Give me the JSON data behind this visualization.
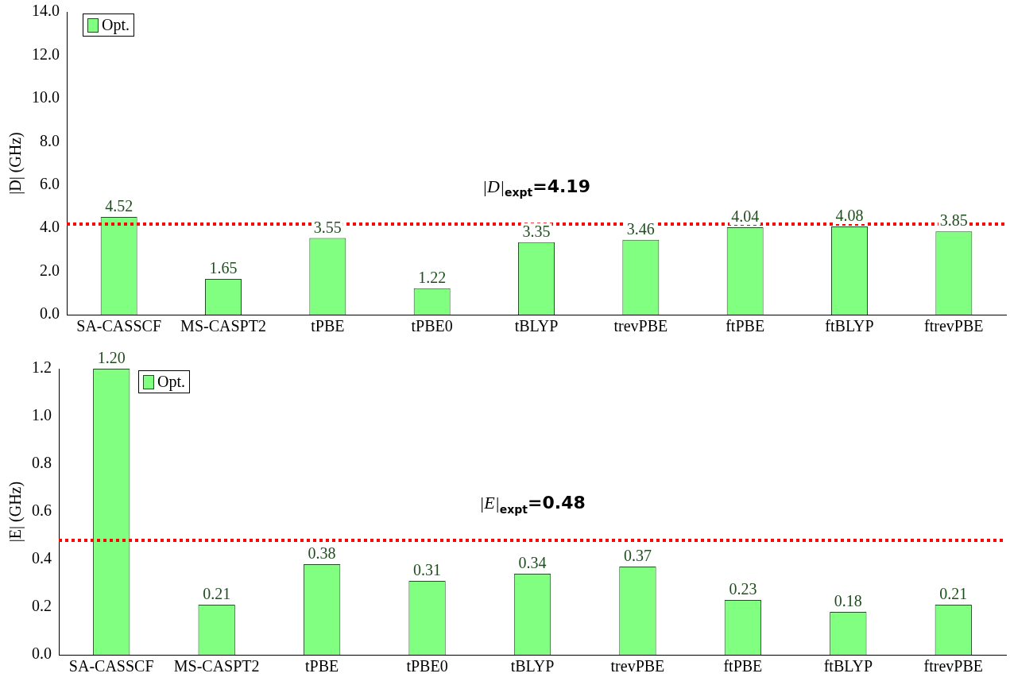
{
  "chart_data": [
    {
      "type": "bar",
      "ylabel": "|D| (GHz)",
      "categories": [
        "SA-CASSCF",
        "MS-CASPT2",
        "tPBE",
        "tPBE0",
        "tBLYP",
        "trevPBE",
        "ftPBE",
        "ftBLYP",
        "ftrevPBE"
      ],
      "series": [
        {
          "name": "Opt.",
          "color": "#80ff80",
          "values": [
            4.52,
            1.65,
            3.55,
            1.22,
            3.35,
            3.46,
            4.04,
            4.08,
            3.85
          ],
          "value_labels": [
            "4.52",
            "1.65",
            "3.55",
            "1.22",
            "3.35",
            "3.46",
            "4.04",
            "4.08",
            "3.85"
          ]
        }
      ],
      "ylim": [
        0,
        14
      ],
      "yticks": [
        {
          "value": 0,
          "label": "0.0"
        },
        {
          "value": 2,
          "label": "2.0"
        },
        {
          "value": 4,
          "label": "4.0"
        },
        {
          "value": 6,
          "label": "6.0"
        },
        {
          "value": 8,
          "label": "8.0"
        },
        {
          "value": 10,
          "label": "10.0"
        },
        {
          "value": 12,
          "label": "12.0"
        },
        {
          "value": 14,
          "label": "14.0"
        }
      ],
      "ref_lines": [
        {
          "axis": "y",
          "value": 4.19,
          "label": "|D|$_{expt}$=4.19",
          "color": "#ff0000",
          "line_style": "dotted"
        }
      ],
      "grid": false,
      "legend": "top left"
    },
    {
      "type": "bar",
      "ylabel": "|E| (GHz)",
      "categories": [
        "SA-CASSCF",
        "MS-CASPT2",
        "tPBE",
        "tPBE0",
        "tBLYP",
        "trevPBE",
        "ftPBE",
        "ftBLYP",
        "ftrevPBE"
      ],
      "series": [
        {
          "name": "Opt.",
          "color": "#80ff80",
          "values": [
            1.2,
            0.21,
            0.38,
            0.31,
            0.34,
            0.37,
            0.23,
            0.18,
            0.21
          ],
          "value_labels": [
            "1.20",
            "0.21",
            "0.38",
            "0.31",
            "0.34",
            "0.37",
            "0.23",
            "0.18",
            "0.21"
          ]
        }
      ],
      "ylim": [
        0,
        1.2
      ],
      "yticks": [
        {
          "value": 0,
          "label": "0.0"
        },
        {
          "value": 0.2,
          "label": "0.2"
        },
        {
          "value": 0.4,
          "label": "0.4"
        },
        {
          "value": 0.6,
          "label": "0.6"
        },
        {
          "value": 0.8,
          "label": "0.8"
        },
        {
          "value": 1.0,
          "label": "1.0"
        },
        {
          "value": 1.2,
          "label": "1.2"
        }
      ],
      "ref_lines": [
        {
          "axis": "y",
          "value": 0.48,
          "label": "|E|$_{expt}$=0.48",
          "color": "#ff0000",
          "line_style": "dotted"
        }
      ],
      "grid": false,
      "legend": "top left"
    }
  ]
}
